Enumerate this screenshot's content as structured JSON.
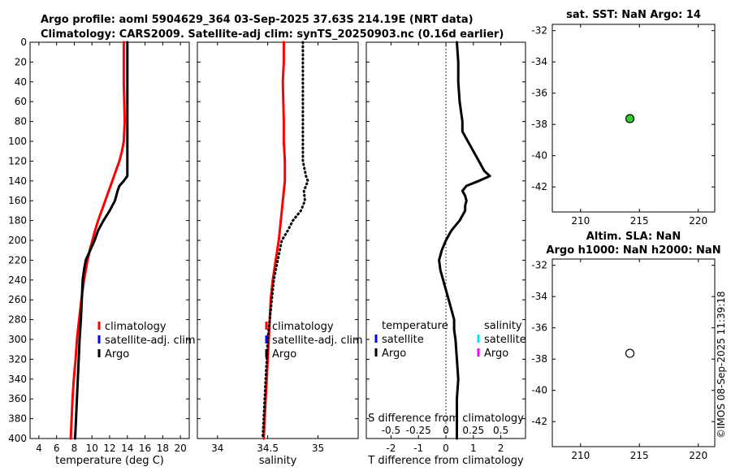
{
  "title_line1": "Argo profile: aoml 5904629_364 03-Sep-2025 37.63S 214.19E (NRT data)",
  "title_line2": "Climatology: CARS2009. Satellite-adj clim: synTS_20250903.nc (0.16d earlier)",
  "watermark": "©IMOS 08-Sep-2025 11:39:18",
  "colors": {
    "climatology": "#ff0000",
    "satellite": "#0000ff",
    "argo": "#000000",
    "sal_satellite": "#00e5ff",
    "sal_argo": "#ff00ff",
    "sst_marker": "#33cc33"
  },
  "chart_data": [
    {
      "id": "temperature",
      "type": "line",
      "xlabel": "temperature (deg C)",
      "ylabel": "",
      "xlim": [
        3,
        21
      ],
      "ylim": [
        0,
        400
      ],
      "xticks": [
        4,
        6,
        8,
        10,
        12,
        14,
        16,
        18,
        20
      ],
      "yticks": [
        0,
        20,
        40,
        60,
        80,
        100,
        120,
        140,
        160,
        180,
        200,
        220,
        240,
        260,
        280,
        300,
        320,
        340,
        360,
        380,
        400
      ],
      "legend": [
        "climatology",
        "satellite-adj. clim",
        "Argo"
      ],
      "series": [
        {
          "name": "climatology",
          "color": "#ff0000",
          "style": "solid",
          "depth": [
            0,
            20,
            40,
            60,
            80,
            100,
            110,
            120,
            130,
            140,
            150,
            160,
            170,
            180,
            190,
            200,
            210,
            220,
            240,
            260,
            280,
            300,
            320,
            340,
            360,
            380,
            400
          ],
          "values": [
            13.6,
            13.6,
            13.6,
            13.65,
            13.7,
            13.6,
            13.4,
            13.1,
            12.7,
            12.3,
            11.9,
            11.5,
            11.1,
            10.7,
            10.35,
            10.05,
            9.75,
            9.5,
            9.1,
            8.8,
            8.55,
            8.3,
            8.15,
            7.95,
            7.8,
            7.7,
            7.6
          ]
        },
        {
          "name": "Argo",
          "color": "#000000",
          "style": "solid",
          "depth": [
            0,
            20,
            40,
            60,
            80,
            100,
            120,
            135,
            140,
            145,
            150,
            160,
            170,
            180,
            190,
            200,
            210,
            220,
            230,
            240,
            260,
            280,
            300,
            320,
            340,
            360,
            380,
            400
          ],
          "values": [
            14.0,
            14.0,
            14.0,
            14.0,
            14.0,
            14.0,
            14.0,
            14.0,
            13.6,
            13.1,
            12.9,
            12.6,
            12.0,
            11.3,
            10.7,
            10.3,
            9.8,
            9.3,
            9.1,
            8.95,
            8.85,
            8.75,
            8.6,
            8.5,
            8.4,
            8.3,
            8.2,
            8.1
          ]
        }
      ]
    },
    {
      "id": "salinity",
      "type": "line",
      "xlabel": "salinity",
      "ylabel": "",
      "xlim": [
        33.8,
        35.4
      ],
      "ylim": [
        0,
        400
      ],
      "xticks": [
        34,
        34.5,
        35
      ],
      "legend": [
        "climatology",
        "satellite-adj. clim",
        "Argo"
      ],
      "series": [
        {
          "name": "climatology",
          "color": "#ff0000",
          "style": "solid",
          "depth": [
            0,
            20,
            40,
            80,
            100,
            120,
            140,
            160,
            170,
            180,
            190,
            200,
            220,
            240,
            260,
            280,
            300,
            320,
            340,
            360,
            380,
            400
          ],
          "values": [
            34.66,
            34.66,
            34.65,
            34.66,
            34.66,
            34.67,
            34.67,
            34.65,
            34.64,
            34.63,
            34.62,
            34.61,
            34.58,
            34.55,
            34.53,
            34.52,
            34.51,
            34.5,
            34.49,
            34.48,
            34.47,
            34.46
          ]
        },
        {
          "name": "Argo",
          "color": "#000000",
          "style": "dotted",
          "depth": [
            0,
            40,
            80,
            120,
            135,
            140,
            150,
            160,
            170,
            180,
            190,
            200,
            220,
            240,
            260,
            280,
            300,
            320,
            340,
            360,
            380,
            400
          ],
          "values": [
            34.85,
            34.85,
            34.85,
            34.85,
            34.88,
            34.9,
            34.86,
            34.87,
            34.83,
            34.75,
            34.7,
            34.64,
            34.6,
            34.56,
            34.54,
            34.52,
            34.5,
            34.49,
            34.48,
            34.47,
            34.46,
            34.45
          ]
        }
      ]
    },
    {
      "id": "difference",
      "type": "line",
      "xlabel": "T difference from climatology",
      "xlabel_top": "S difference from climatology",
      "xlim": [
        -2.9,
        2.9
      ],
      "ylim": [
        0,
        400
      ],
      "xticks": [
        -2,
        -1,
        0,
        1,
        2
      ],
      "xticks_s": [
        "-0.5",
        "-0.25",
        "0",
        "0.25",
        "0.5"
      ],
      "legend_temperature_title": "temperature",
      "legend_salinity_title": "salinity",
      "legend_temperature": [
        "satellite",
        "Argo"
      ],
      "legend_salinity": [
        "satellite",
        "Argo"
      ],
      "series": [
        {
          "name": "T difference",
          "color": "#000000",
          "style": "solid",
          "depth": [
            0,
            20,
            40,
            60,
            80,
            90,
            100,
            110,
            120,
            130,
            135,
            140,
            145,
            150,
            155,
            160,
            165,
            170,
            180,
            190,
            195,
            200,
            210,
            220,
            230,
            240,
            250,
            260,
            270,
            280,
            290,
            300,
            320,
            340,
            360,
            380,
            400
          ],
          "values": [
            0.4,
            0.45,
            0.45,
            0.5,
            0.6,
            0.6,
            0.8,
            1.0,
            1.2,
            1.4,
            1.6,
            1.2,
            0.75,
            0.6,
            0.7,
            0.75,
            0.7,
            0.7,
            0.5,
            0.2,
            0.1,
            0.0,
            -0.15,
            -0.25,
            -0.2,
            -0.1,
            0.0,
            0.1,
            0.2,
            0.3,
            0.3,
            0.35,
            0.4,
            0.45,
            0.4,
            0.4,
            0.4
          ]
        }
      ]
    },
    {
      "id": "map_sst",
      "type": "scatter",
      "title": "sat. SST: NaN Argo: 14",
      "xlim": [
        207.6,
        221.4
      ],
      "ylim": [
        -43.6,
        -31.6
      ],
      "xticks": [
        210,
        215,
        220
      ],
      "yticks": [
        -32,
        -34,
        -36,
        -38,
        -40,
        -42
      ],
      "points": [
        {
          "lon": 214.19,
          "lat": -37.63,
          "filled": true
        }
      ]
    },
    {
      "id": "map_sla",
      "type": "scatter",
      "title": "Altim. SLA: NaN",
      "title2": "Argo h1000: NaN h2000: NaN",
      "xlim": [
        207.6,
        221.4
      ],
      "ylim": [
        -43.6,
        -31.6
      ],
      "xticks": [
        210,
        215,
        220
      ],
      "yticks": [
        -32,
        -34,
        -36,
        -38,
        -40,
        -42
      ],
      "points": [
        {
          "lon": 214.19,
          "lat": -37.63,
          "filled": false
        }
      ]
    }
  ]
}
